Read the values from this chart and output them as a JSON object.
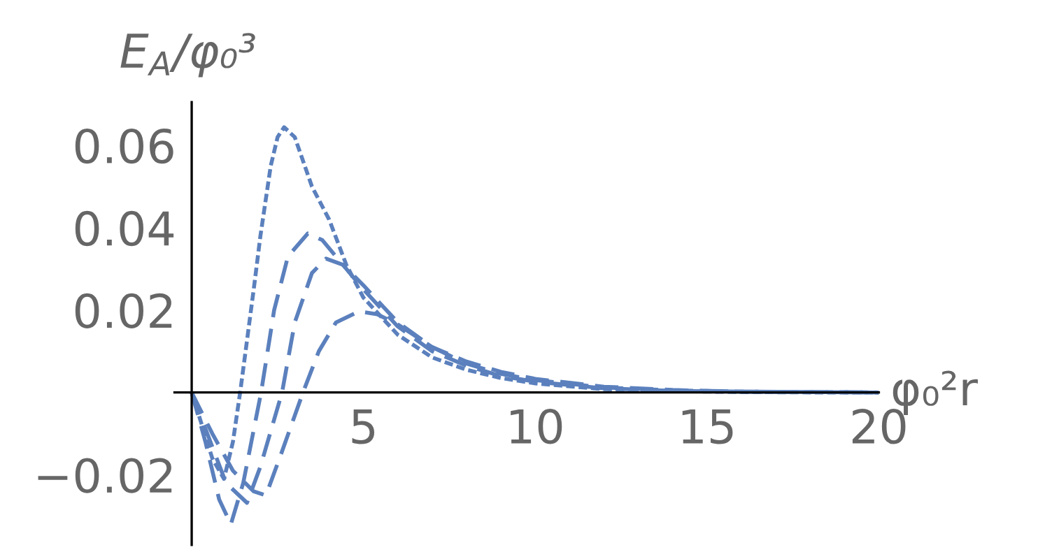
{
  "chart_data": {
    "type": "line",
    "xlabel": "φ₀²r",
    "ylabel": "E$_{A}$/φ₀³",
    "xlim": [
      -0.5,
      20
    ],
    "ylim": [
      -0.037,
      0.0705
    ],
    "xticks": [
      5,
      10,
      15,
      20
    ],
    "yticks": [
      -0.02,
      0.02,
      0.04,
      0.06
    ],
    "grid": false,
    "legend": false,
    "marker": "none",
    "series": [
      {
        "color": "#5b80bd",
        "line_style": "dotted",
        "x": [
          0,
          0.3,
          0.6,
          0.94,
          1.2,
          1.41,
          1.6,
          1.82,
          2.0,
          2.3,
          2.5,
          2.69,
          3.0,
          3.5,
          4,
          4.5,
          5,
          6,
          7,
          8,
          9,
          10,
          12,
          14,
          16,
          18,
          20
        ],
        "values": [
          0,
          -0.008,
          -0.016,
          -0.021,
          -0.012,
          0,
          0.012,
          0.026,
          0.038,
          0.055,
          0.062,
          0.0644,
          0.062,
          0.05,
          0.042,
          0.031,
          0.023,
          0.014,
          0.0085,
          0.0055,
          0.0035,
          0.0022,
          0.0008,
          0.0003,
          0.0001,
          0,
          0
        ]
      },
      {
        "color": "#5b80bd",
        "line_style": "dashed",
        "x": [
          0,
          0.4,
          0.8,
          1.14,
          1.5,
          2.02,
          2.4,
          2.8,
          3.38,
          3.8,
          4.3,
          5,
          6,
          7,
          8,
          9,
          10,
          12,
          14,
          16,
          18,
          20
        ],
        "values": [
          0,
          -0.012,
          -0.026,
          -0.032,
          -0.022,
          0,
          0.02,
          0.033,
          0.0386,
          0.037,
          0.032,
          0.025,
          0.016,
          0.01,
          0.0065,
          0.004,
          0.0026,
          0.001,
          0.0004,
          0.0002,
          0.0001,
          0
        ]
      },
      {
        "color": "#5b80bd",
        "line_style": "dashed",
        "x": [
          0,
          0.5,
          1.0,
          1.61,
          2.0,
          2.63,
          3.0,
          3.5,
          3.91,
          4.4,
          5,
          6,
          7,
          8,
          9,
          10,
          12,
          14,
          16,
          18,
          20
        ],
        "values": [
          0,
          -0.011,
          -0.022,
          -0.0268,
          -0.018,
          0,
          0.017,
          0.029,
          0.0325,
          0.031,
          0.026,
          0.017,
          0.011,
          0.007,
          0.0045,
          0.003,
          0.0012,
          0.0005,
          0.0002,
          0.0001,
          0
        ]
      },
      {
        "color": "#5b80bd",
        "line_style": "dashed",
        "x": [
          0,
          0.6,
          1.2,
          1.8,
          2.16,
          2.6,
          3.24,
          3.7,
          4.2,
          4.87,
          5.4,
          6,
          7,
          8,
          9,
          10,
          12,
          14,
          16,
          18,
          20
        ],
        "values": [
          0,
          -0.01,
          -0.019,
          -0.024,
          -0.025,
          -0.015,
          0,
          0.01,
          0.017,
          0.0197,
          0.019,
          0.0165,
          0.011,
          0.0075,
          0.005,
          0.0033,
          0.0014,
          0.0006,
          0.0002,
          0.0001,
          0
        ]
      }
    ]
  }
}
